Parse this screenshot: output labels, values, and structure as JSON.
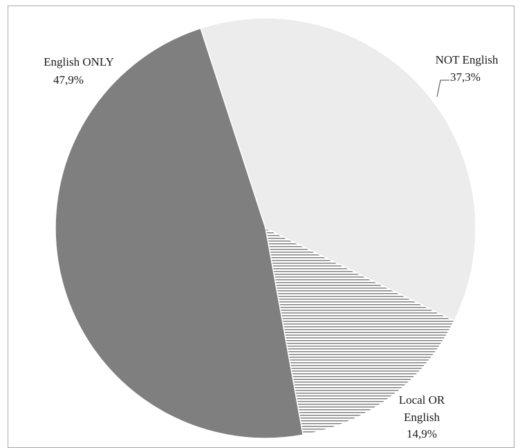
{
  "chart_data": {
    "type": "pie",
    "title": "",
    "slices": [
      {
        "label": "NOT English",
        "value": 37.3,
        "value_label": "37,3%",
        "color": "#ececec",
        "pattern": "none"
      },
      {
        "label_lines": [
          "Local OR",
          "English"
        ],
        "value": 14.9,
        "value_label": "14,9%",
        "color": "#ffffff",
        "pattern": "horizontal-lines"
      },
      {
        "label": "English ONLY",
        "value": 47.9,
        "value_label": "47,9%",
        "color": "#7f7f7f",
        "pattern": "none"
      }
    ],
    "legend": "none",
    "data_labels": "outside-with-leader"
  }
}
